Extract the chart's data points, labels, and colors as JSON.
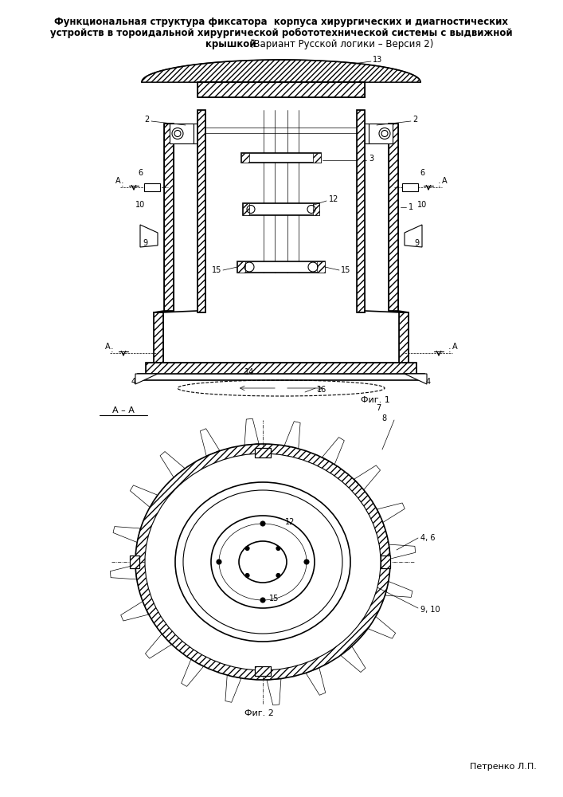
{
  "title_line1": "Функциональная структура фиксатора  корпуса хирургических и диагностических",
  "title_line2": "устройств в тороидальной хирургической робототехнической системы с выдвижной",
  "title_line3_bold": "крышкой",
  "title_line3_normal": " (Вариант Русской логики – Версия 2)",
  "fig1_label": "Фиг. 1",
  "fig2_label": "Фиг. 2",
  "author": "Петренко Л.П.",
  "section_label": "А – А",
  "bg_color": "#ffffff",
  "line_color": "#000000",
  "fig_width": 7.07,
  "fig_height": 10.0
}
